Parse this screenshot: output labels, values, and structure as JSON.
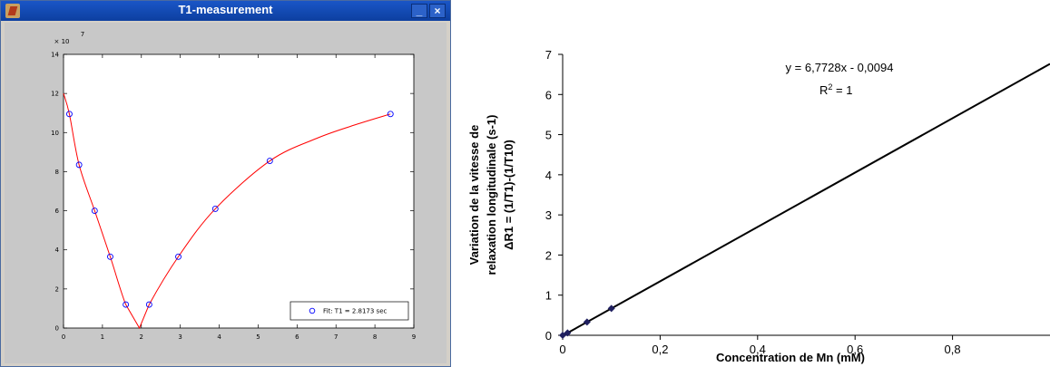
{
  "window": {
    "title": "T1-measurement",
    "minimize_glyph": "_",
    "close_glyph": "×"
  },
  "chart_data": [
    {
      "type": "scatter",
      "xlim": [
        0,
        9
      ],
      "ylim": [
        0,
        14
      ],
      "y_exponent_label": "× 10",
      "y_exponent_power": "7",
      "x_ticks": [
        "0",
        "1",
        "2",
        "3",
        "4",
        "5",
        "6",
        "7",
        "8",
        "9"
      ],
      "y_ticks": [
        "0",
        "2",
        "4",
        "6",
        "8",
        "10",
        "12",
        "14"
      ],
      "grid": false,
      "legend": "bottom-right",
      "series": [
        {
          "name": "Fit: T1 = 2.8173 sec",
          "marker": "circle",
          "color": "#0000ff",
          "x": [
            0.15,
            0.4,
            0.8,
            1.2,
            1.6,
            2.2,
            2.95,
            3.9,
            5.3,
            8.4
          ],
          "y": [
            10.95,
            8.35,
            6.0,
            3.65,
            1.2,
            1.2,
            3.65,
            6.1,
            8.55,
            10.95
          ]
        }
      ],
      "fit_curve": {
        "color": "#ff0000",
        "x": [
          0,
          0.15,
          0.4,
          0.8,
          1.2,
          1.6,
          1.95,
          2.2,
          2.95,
          3.9,
          5.3,
          6.5,
          7.5,
          8.4
        ],
        "y": [
          12.0,
          10.95,
          8.35,
          6.0,
          3.65,
          1.2,
          0.0,
          1.2,
          3.65,
          6.1,
          8.55,
          9.7,
          10.4,
          10.95
        ]
      }
    },
    {
      "type": "scatter",
      "xlabel": "Concentration de Mn (mM)",
      "ylabel_line1": "Variation de la vitesse de",
      "ylabel_line2": "relaxation longitudinale (s-1)",
      "ylabel_line3": "ΔR1 = (1/T1)-(1/T10)",
      "xlim": [
        0,
        1
      ],
      "ylim": [
        0,
        7
      ],
      "x_ticks": [
        "0",
        "0,2",
        "0,4",
        "0,6",
        "0,8"
      ],
      "y_ticks": [
        "0",
        "1",
        "2",
        "3",
        "4",
        "5",
        "6",
        "7"
      ],
      "grid": false,
      "equation": "y = 6,7728x - 0,0094",
      "r_squared": "R",
      "r_squared_power": "2",
      "r_squared_value": " = 1",
      "series": [
        {
          "marker": "diamond",
          "color": "#1f1f5f",
          "x": [
            0,
            0.01,
            0.05,
            0.1
          ],
          "y": [
            0,
            0.06,
            0.33,
            0.67
          ]
        }
      ],
      "trendline": {
        "slope": 6.7728,
        "intercept": -0.0094,
        "color": "#000000"
      }
    }
  ]
}
